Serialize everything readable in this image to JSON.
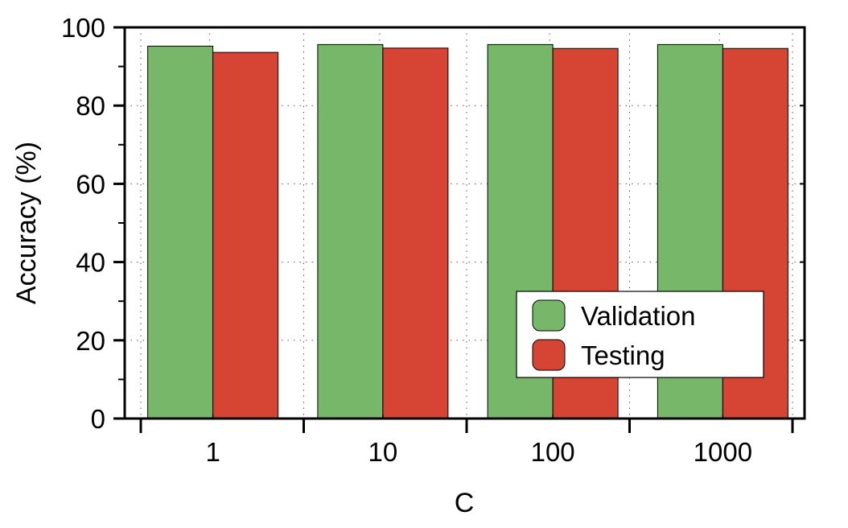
{
  "chart_data": {
    "type": "bar",
    "categories": [
      "1",
      "10",
      "100",
      "1000"
    ],
    "series": [
      {
        "name": "Validation",
        "values": [
          95.2,
          95.6,
          95.6,
          95.6
        ],
        "color": "#77b76a"
      },
      {
        "name": "Testing",
        "values": [
          93.6,
          94.7,
          94.6,
          94.6
        ],
        "color": "#d64533"
      }
    ],
    "xlabel": "C",
    "ylabel": "Accuracy (%)",
    "ylim": [
      0,
      100
    ],
    "yticks": [
      0,
      20,
      40,
      60,
      80,
      100
    ],
    "grid": true,
    "legend_position": "bottom-right"
  }
}
